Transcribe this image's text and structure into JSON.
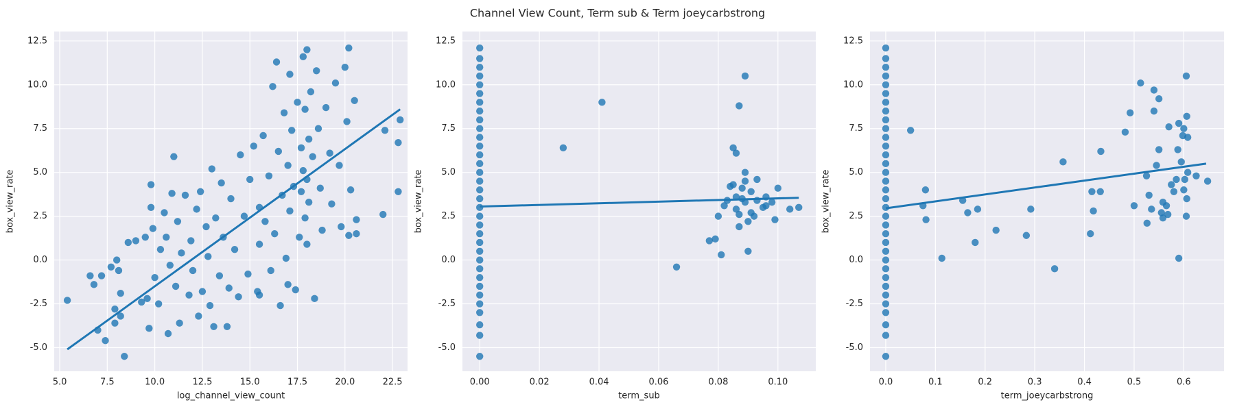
{
  "title": "Channel View Count, Term sub & Term joeycarbstrong",
  "chart_data": [
    {
      "type": "scatter",
      "xlabel": "log_channel_view_count",
      "ylabel": "box_view_rate",
      "color": "#1f77b4",
      "grid": true,
      "xlim": [
        4.71,
        23.29
      ],
      "ylim": [
        -6.35,
        13.04
      ],
      "xticks": [
        {
          "value": 5,
          "label": "5.0"
        },
        7.5,
        {
          "value": 10,
          "label": "10.0"
        },
        12.5,
        {
          "value": 15,
          "label": "15.0"
        },
        17.5,
        {
          "value": 20,
          "label": "20.0"
        },
        22.5
      ],
      "yticks": [
        {
          "value": -5,
          "label": "-5.0"
        },
        -2.5,
        {
          "value": 0,
          "label": "0.0"
        },
        2.5,
        {
          "value": 5,
          "label": "5.0"
        },
        7.5,
        {
          "value": 10,
          "label": "10.0"
        },
        12.5
      ],
      "x": [
        5.4,
        6.6,
        6.8,
        7.0,
        7.2,
        7.4,
        7.7,
        7.9,
        7.9,
        8.0,
        8.1,
        8.2,
        8.2,
        8.4,
        8.6,
        9.0,
        9.3,
        9.5,
        9.6,
        9.7,
        9.8,
        9.8,
        9.9,
        10.0,
        10.2,
        10.3,
        10.5,
        10.6,
        10.7,
        10.8,
        10.9,
        11.0,
        11.1,
        11.2,
        11.3,
        11.4,
        11.6,
        11.8,
        11.9,
        12.0,
        12.2,
        12.3,
        12.4,
        12.5,
        12.7,
        12.8,
        12.9,
        13.0,
        13.1,
        13.2,
        13.4,
        13.5,
        13.6,
        13.8,
        13.9,
        14.0,
        14.2,
        14.4,
        14.5,
        14.7,
        14.9,
        15.0,
        15.2,
        15.4,
        15.5,
        15.5,
        15.5,
        15.7,
        15.8,
        16.0,
        16.1,
        16.2,
        16.3,
        16.4,
        16.5,
        16.6,
        16.7,
        16.8,
        16.9,
        17.0,
        17.0,
        17.1,
        17.1,
        17.2,
        17.3,
        17.4,
        17.5,
        17.6,
        17.7,
        17.7,
        17.8,
        17.8,
        17.9,
        17.9,
        18.0,
        18.0,
        18.0,
        18.1,
        18.1,
        18.2,
        18.3,
        18.4,
        18.5,
        18.6,
        18.7,
        18.8,
        19.0,
        19.2,
        19.3,
        19.5,
        19.7,
        19.8,
        20.0,
        20.1,
        20.2,
        20.2,
        20.3,
        20.5,
        20.6,
        20.6,
        22.0,
        22.1,
        22.8,
        22.8,
        22.9
      ],
      "y": [
        -2.3,
        -0.9,
        -1.4,
        -4.0,
        -0.9,
        -4.6,
        -0.4,
        -2.8,
        -3.6,
        0.0,
        -0.6,
        -1.9,
        -3.2,
        -5.5,
        1.0,
        1.1,
        -2.4,
        1.3,
        -2.2,
        -3.9,
        3.0,
        4.3,
        1.8,
        -1.0,
        -2.5,
        0.6,
        2.7,
        1.3,
        -4.2,
        -0.3,
        3.8,
        5.9,
        -1.5,
        2.2,
        -3.6,
        0.4,
        3.7,
        -2.0,
        1.1,
        -0.6,
        2.9,
        -3.2,
        3.9,
        -1.8,
        1.9,
        0.2,
        -2.6,
        5.2,
        -3.8,
        2.4,
        -0.9,
        4.4,
        1.3,
        -3.8,
        -1.6,
        3.5,
        0.6,
        -2.1,
        6.0,
        2.5,
        -0.8,
        4.6,
        6.5,
        -1.8,
        0.9,
        3.0,
        -2.0,
        7.1,
        2.2,
        4.8,
        -0.6,
        9.9,
        1.5,
        11.3,
        6.2,
        -2.6,
        3.7,
        8.4,
        0.1,
        5.4,
        -1.4,
        10.6,
        2.8,
        7.4,
        4.2,
        -1.7,
        9.0,
        1.3,
        6.4,
        3.9,
        11.6,
        5.1,
        2.4,
        8.6,
        4.6,
        12.0,
        0.9,
        6.9,
        3.3,
        9.6,
        5.9,
        -2.2,
        10.8,
        7.5,
        4.1,
        1.7,
        8.7,
        6.1,
        3.2,
        10.1,
        5.4,
        1.9,
        11.0,
        7.9,
        12.1,
        1.4,
        4.0,
        9.1,
        2.3,
        1.5,
        2.6,
        7.4,
        3.9,
        6.7,
        8.0
      ],
      "fit": {
        "x": [
          5.4,
          22.9
        ],
        "y": [
          -5.1,
          8.6
        ]
      }
    },
    {
      "type": "scatter",
      "xlabel": "term_sub",
      "ylabel": "box_view_rate",
      "color": "#1f77b4",
      "grid": true,
      "xlim": [
        -0.0058,
        0.1127
      ],
      "ylim": [
        -6.35,
        13.04
      ],
      "xticks": [
        {
          "value": 0,
          "label": "0.00"
        },
        0.02,
        0.04,
        0.06,
        0.08,
        {
          "value": 0.1,
          "label": "0.10"
        }
      ],
      "yticks": [
        {
          "value": -5,
          "label": "-5.0"
        },
        -2.5,
        {
          "value": 0,
          "label": "0.0"
        },
        2.5,
        {
          "value": 5,
          "label": "5.0"
        },
        7.5,
        {
          "value": 10,
          "label": "10.0"
        },
        12.5
      ],
      "x": [
        0,
        0,
        0,
        0,
        0,
        0,
        0,
        0,
        0,
        0,
        0,
        0,
        0,
        0,
        0,
        0,
        0,
        0,
        0,
        0,
        0,
        0,
        0,
        0,
        0,
        0,
        0,
        0,
        0,
        0,
        0,
        0,
        0,
        0,
        0.028,
        0.041,
        0.066,
        0.077,
        0.079,
        0.08,
        0.081,
        0.082,
        0.083,
        0.084,
        0.085,
        0.085,
        0.086,
        0.086,
        0.086,
        0.087,
        0.087,
        0.087,
        0.088,
        0.088,
        0.089,
        0.089,
        0.089,
        0.089,
        0.09,
        0.09,
        0.091,
        0.091,
        0.092,
        0.093,
        0.093,
        0.095,
        0.096,
        0.096,
        0.098,
        0.099,
        0.1,
        0.104,
        0.107
      ],
      "y": [
        -5.5,
        -4.3,
        -3.7,
        -3.0,
        -2.5,
        -2.0,
        -1.5,
        -1.0,
        -0.5,
        0.0,
        0.5,
        1.0,
        1.5,
        2.0,
        2.5,
        3.0,
        3.5,
        4.0,
        4.5,
        5.0,
        5.5,
        6.0,
        6.5,
        7.0,
        7.5,
        8.0,
        8.5,
        9.0,
        9.5,
        10.0,
        10.5,
        11.0,
        11.5,
        12.1,
        6.4,
        9.0,
        -0.4,
        1.1,
        1.2,
        2.5,
        0.3,
        3.1,
        3.4,
        4.2,
        4.3,
        6.4,
        3.6,
        6.1,
        2.9,
        1.9,
        8.8,
        2.6,
        3.5,
        4.1,
        10.5,
        5.0,
        3.3,
        4.5,
        2.2,
        0.5,
        2.7,
        3.9,
        2.5,
        4.6,
        3.4,
        3.0,
        3.6,
        3.1,
        3.3,
        2.3,
        4.1,
        2.9,
        3.0
      ],
      "fit": {
        "x": [
          0,
          0.107
        ],
        "y": [
          3.05,
          3.55
        ]
      }
    },
    {
      "type": "scatter",
      "xlabel": "term_joeycarbstrong",
      "ylabel": "box_view_rate",
      "color": "#1f77b4",
      "grid": true,
      "xlim": [
        -0.0317,
        0.681
      ],
      "ylim": [
        -6.35,
        13.04
      ],
      "xticks": [
        {
          "value": 0,
          "label": "0.0"
        },
        0.1,
        0.2,
        0.3,
        0.4,
        0.5,
        0.6
      ],
      "yticks": [
        {
          "value": -5,
          "label": "-5.0"
        },
        -2.5,
        {
          "value": 0,
          "label": "0.0"
        },
        2.5,
        {
          "value": 5,
          "label": "5.0"
        },
        7.5,
        {
          "value": 10,
          "label": "10.0"
        },
        12.5
      ],
      "x": [
        0,
        0,
        0,
        0,
        0,
        0,
        0,
        0,
        0,
        0,
        0,
        0,
        0,
        0,
        0,
        0,
        0,
        0,
        0,
        0,
        0,
        0,
        0,
        0,
        0,
        0,
        0,
        0,
        0,
        0,
        0,
        0,
        0,
        0,
        0.05,
        0.075,
        0.08,
        0.081,
        0.113,
        0.155,
        0.165,
        0.18,
        0.185,
        0.222,
        0.283,
        0.292,
        0.34,
        0.357,
        0.412,
        0.415,
        0.418,
        0.432,
        0.433,
        0.482,
        0.492,
        0.5,
        0.513,
        0.525,
        0.526,
        0.53,
        0.535,
        0.54,
        0.54,
        0.545,
        0.55,
        0.55,
        0.555,
        0.558,
        0.558,
        0.565,
        0.568,
        0.57,
        0.575,
        0.58,
        0.585,
        0.588,
        0.59,
        0.59,
        0.595,
        0.598,
        0.6,
        0.6,
        0.602,
        0.605,
        0.605,
        0.606,
        0.606,
        0.608,
        0.608,
        0.625,
        0.648
      ],
      "y": [
        -5.5,
        -4.3,
        -3.7,
        -3.0,
        -2.5,
        -2.0,
        -1.5,
        -1.0,
        -0.5,
        0.0,
        0.5,
        1.0,
        1.5,
        2.0,
        2.5,
        3.0,
        3.5,
        4.0,
        4.5,
        5.0,
        5.5,
        6.0,
        6.5,
        7.0,
        7.5,
        8.0,
        8.5,
        9.0,
        9.5,
        10.0,
        10.5,
        11.0,
        11.5,
        12.1,
        7.4,
        3.1,
        4.0,
        2.3,
        0.1,
        3.4,
        2.7,
        1.0,
        2.9,
        1.7,
        1.4,
        2.9,
        -0.5,
        5.6,
        1.5,
        3.9,
        2.8,
        3.9,
        6.2,
        7.3,
        8.4,
        3.1,
        10.1,
        4.8,
        2.1,
        3.7,
        2.9,
        9.7,
        8.5,
        5.4,
        9.2,
        6.3,
        2.7,
        3.3,
        2.4,
        3.1,
        2.6,
        7.6,
        4.3,
        3.9,
        4.6,
        6.3,
        0.1,
        7.8,
        5.6,
        7.1,
        7.5,
        4.0,
        4.6,
        2.5,
        10.5,
        8.2,
        3.5,
        5.0,
        7.0,
        4.8,
        4.5
      ],
      "fit": {
        "x": [
          0,
          0.645
        ],
        "y": [
          2.95,
          5.5
        ]
      }
    }
  ]
}
